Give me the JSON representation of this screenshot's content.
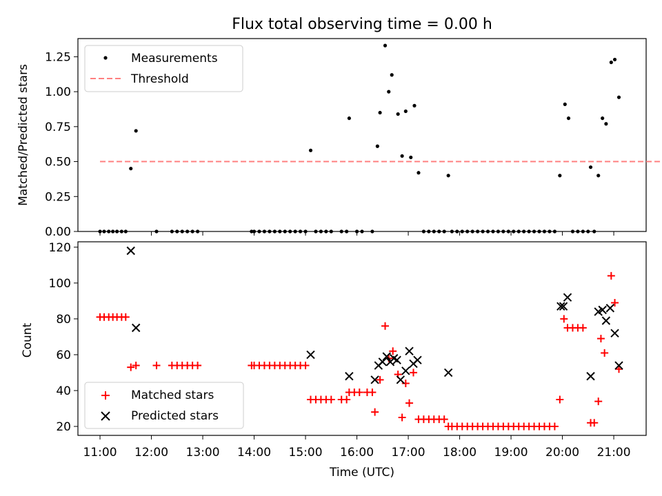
{
  "title": "Flux total observing time = 0.00 h",
  "colors": {
    "measurement": "#000000",
    "threshold": "#ff7f7f",
    "matched": "#ff0000",
    "predicted": "#000000"
  },
  "chart_data": [
    {
      "type": "scatter",
      "panel": "top",
      "ylabel": "Matched/Predicted stars",
      "xlabel": "",
      "xlim": [
        10.57,
        21.63
      ],
      "ylim": [
        0,
        1.38
      ],
      "yticks": [
        0,
        0.25,
        0.5,
        0.75,
        1.0,
        1.25
      ],
      "ytick_labels": [
        "0.00",
        "0.25",
        "0.50",
        "0.75",
        "1.00",
        "1.25"
      ],
      "legend": {
        "placement": "top-left",
        "entries": [
          "Measurements",
          "Threshold"
        ]
      },
      "threshold": {
        "name": "Threshold",
        "value": 0.5,
        "x_range": [
          11.0,
          22.1
        ]
      },
      "series": [
        {
          "name": "Measurements",
          "x": [
            11.0,
            11.08,
            11.17,
            11.25,
            11.33,
            11.42,
            11.5,
            11.6,
            11.7,
            12.1,
            12.4,
            12.5,
            12.6,
            12.7,
            12.8,
            12.9,
            13.95,
            14.0,
            14.1,
            14.2,
            14.3,
            14.4,
            14.5,
            14.6,
            14.7,
            14.8,
            14.9,
            15.0,
            15.1,
            15.2,
            15.3,
            15.4,
            15.5,
            15.7,
            15.8,
            15.85,
            16.0,
            16.1,
            16.3,
            16.4,
            16.45,
            16.55,
            16.62,
            16.68,
            16.8,
            16.88,
            16.95,
            17.05,
            17.12,
            17.2,
            17.3,
            17.4,
            17.5,
            17.6,
            17.7,
            17.78,
            17.85,
            17.95,
            18.05,
            18.15,
            18.25,
            18.35,
            18.45,
            18.55,
            18.65,
            18.75,
            18.85,
            18.95,
            19.05,
            19.15,
            19.25,
            19.35,
            19.45,
            19.55,
            19.65,
            19.75,
            19.85,
            19.95,
            20.05,
            20.12,
            20.2,
            20.3,
            20.4,
            20.5,
            20.55,
            20.62,
            20.7,
            20.78,
            20.85,
            20.95,
            21.02,
            21.1
          ],
          "y": [
            0,
            0,
            0,
            0,
            0,
            0,
            0,
            0.45,
            0.72,
            0,
            0,
            0,
            0,
            0,
            0,
            0,
            0,
            0,
            0,
            0,
            0,
            0,
            0,
            0,
            0,
            0,
            0,
            0,
            0.58,
            0,
            0,
            0,
            0,
            0,
            0,
            0.81,
            0,
            0,
            0,
            0.61,
            0.85,
            1.33,
            1.0,
            1.12,
            0.84,
            0.54,
            0.86,
            0.53,
            0.9,
            0.42,
            0,
            0,
            0,
            0,
            0,
            0.4,
            0,
            0,
            0,
            0,
            0,
            0,
            0,
            0,
            0,
            0,
            0,
            0,
            0,
            0,
            0,
            0,
            0,
            0,
            0,
            0,
            0,
            0.4,
            0.91,
            0.81,
            0,
            0,
            0,
            0,
            0.46,
            0,
            0.4,
            0.81,
            0.77,
            1.21,
            1.23,
            0.96
          ]
        }
      ]
    },
    {
      "type": "scatter",
      "panel": "bottom",
      "ylabel": "Count",
      "xlabel": "Time (UTC)",
      "xlim": [
        10.57,
        21.63
      ],
      "ylim": [
        15,
        123
      ],
      "yticks": [
        20,
        40,
        60,
        80,
        100,
        120
      ],
      "ytick_labels": [
        "20",
        "40",
        "60",
        "80",
        "100",
        "120"
      ],
      "xticks": [
        11,
        12,
        13,
        14,
        15,
        16,
        17,
        18,
        19,
        20,
        21
      ],
      "xtick_labels": [
        "11:00",
        "12:00",
        "13:00",
        "14:00",
        "15:00",
        "16:00",
        "17:00",
        "18:00",
        "19:00",
        "20:00",
        "21:00"
      ],
      "legend": {
        "placement": "bottom-left",
        "entries": [
          "Matched stars",
          "Predicted stars"
        ]
      },
      "series": [
        {
          "name": "Matched stars",
          "marker": "plus",
          "x": [
            11.0,
            11.08,
            11.17,
            11.25,
            11.33,
            11.42,
            11.5,
            11.6,
            11.7,
            12.1,
            12.4,
            12.5,
            12.6,
            12.7,
            12.8,
            12.9,
            13.95,
            14.0,
            14.1,
            14.2,
            14.3,
            14.4,
            14.5,
            14.6,
            14.7,
            14.8,
            14.9,
            15.0,
            15.1,
            15.2,
            15.3,
            15.4,
            15.5,
            15.7,
            15.8,
            15.85,
            15.95,
            16.05,
            16.2,
            16.3,
            16.35,
            16.45,
            16.55,
            16.62,
            16.7,
            16.8,
            16.88,
            16.95,
            17.02,
            17.1,
            17.2,
            17.3,
            17.4,
            17.5,
            17.6,
            17.7,
            17.78,
            17.85,
            17.95,
            18.05,
            18.15,
            18.25,
            18.35,
            18.45,
            18.55,
            18.65,
            18.75,
            18.85,
            18.95,
            19.05,
            19.15,
            19.25,
            19.35,
            19.45,
            19.55,
            19.65,
            19.75,
            19.85,
            19.95,
            20.03,
            20.1,
            20.2,
            20.3,
            20.4,
            20.55,
            20.62,
            20.7,
            20.75,
            20.82,
            20.95,
            21.02,
            21.1
          ],
          "y": [
            81,
            81,
            81,
            81,
            81,
            81,
            81,
            53,
            54,
            54,
            54,
            54,
            54,
            54,
            54,
            54,
            54,
            54,
            54,
            54,
            54,
            54,
            54,
            54,
            54,
            54,
            54,
            54,
            35,
            35,
            35,
            35,
            35,
            35,
            35,
            39,
            39,
            39,
            39,
            39,
            28,
            46,
            76,
            58,
            62,
            49,
            25,
            44,
            33,
            50,
            24,
            24,
            24,
            24,
            24,
            24,
            20,
            20,
            20,
            20,
            20,
            20,
            20,
            20,
            20,
            20,
            20,
            20,
            20,
            20,
            20,
            20,
            20,
            20,
            20,
            20,
            20,
            20,
            35,
            80,
            75,
            75,
            75,
            75,
            22,
            22,
            34,
            69,
            61,
            104,
            89,
            52
          ]
        },
        {
          "name": "Predicted stars",
          "marker": "x",
          "x": [
            11.6,
            11.7,
            15.1,
            15.85,
            16.35,
            16.42,
            16.5,
            16.58,
            16.65,
            16.72,
            16.78,
            16.85,
            16.95,
            17.02,
            17.1,
            17.18,
            17.78,
            19.97,
            20.02,
            20.1,
            20.55,
            20.7,
            20.78,
            20.85,
            20.93,
            21.02,
            21.1
          ],
          "y": [
            118,
            75,
            60,
            48,
            46,
            54,
            56,
            59,
            56,
            58,
            57,
            46,
            51,
            62,
            55,
            57,
            50,
            87,
            87,
            92,
            48,
            84,
            85,
            79,
            86,
            72,
            54
          ]
        }
      ]
    }
  ]
}
